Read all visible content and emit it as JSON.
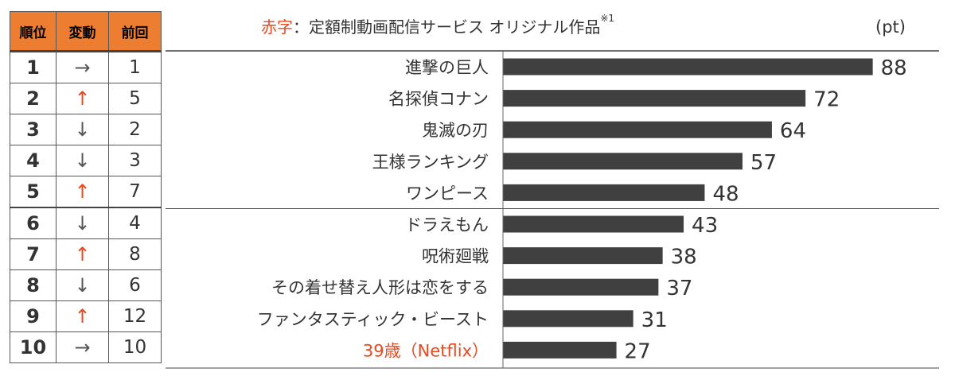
{
  "table": {
    "headers": [
      "順位",
      "変動",
      "前回"
    ],
    "rows": [
      {
        "rank": "1",
        "change": "→",
        "change_type": "same",
        "prev": "1"
      },
      {
        "rank": "2",
        "change": "↑",
        "change_type": "up",
        "prev": "5"
      },
      {
        "rank": "3",
        "change": "↓",
        "change_type": "down",
        "prev": "2"
      },
      {
        "rank": "4",
        "change": "↓",
        "change_type": "down",
        "prev": "3"
      },
      {
        "rank": "5",
        "change": "↑",
        "change_type": "up",
        "prev": "7"
      },
      {
        "rank": "6",
        "change": "↓",
        "change_type": "down",
        "prev": "4"
      },
      {
        "rank": "7",
        "change": "↑",
        "change_type": "up",
        "prev": "8"
      },
      {
        "rank": "8",
        "change": "↓",
        "change_type": "down",
        "prev": "6"
      },
      {
        "rank": "9",
        "change": "↑",
        "change_type": "up",
        "prev": "12"
      },
      {
        "rank": "10",
        "change": "→",
        "change_type": "same",
        "prev": "10"
      }
    ]
  },
  "legend": {
    "red_text": "赤字",
    "text": "：定額制動画配信サービス オリジナル作品",
    "footnote": "※1"
  },
  "colors": {
    "bar": "#404040",
    "header": "#ed7d31",
    "highlight": "#e8491d",
    "up_arrow": "#e8491d"
  },
  "chart_data": {
    "type": "bar",
    "orientation": "horizontal",
    "unit": "(pt)",
    "categories": [
      "進撃の巨人",
      "名探偵コナン",
      "鬼滅の刃",
      "王様ランキング",
      "ワンピース",
      "ドラえもん",
      "呪術廻戦",
      "その着せ替え人形は恋をする",
      "ファンタスティック・ビースト",
      "39歳（Netflix）"
    ],
    "values": [
      88,
      72,
      64,
      57,
      48,
      43,
      38,
      37,
      31,
      27
    ],
    "highlighted": [
      false,
      false,
      false,
      false,
      false,
      false,
      false,
      false,
      false,
      true
    ],
    "xlim": [
      0,
      100
    ],
    "grid": false
  }
}
